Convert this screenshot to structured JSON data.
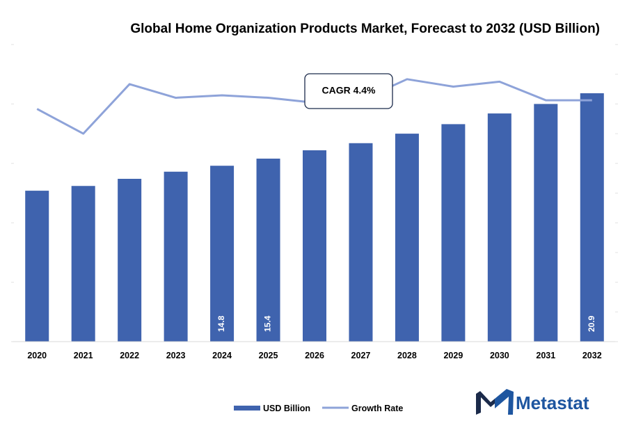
{
  "chart_data": {
    "type": "bar",
    "title": "Global Home Organization Products Market, Forecast to 2032 (USD Billion)",
    "categories": [
      "2020",
      "2021",
      "2022",
      "2023",
      "2024",
      "2025",
      "2026",
      "2027",
      "2028",
      "2029",
      "2030",
      "2031",
      "2032"
    ],
    "ylim": [
      0,
      25
    ],
    "series": [
      {
        "name": "USD Billion",
        "type": "bar",
        "color": "#3F63AE",
        "values": [
          12.7,
          13.1,
          13.7,
          14.3,
          14.8,
          15.4,
          16.1,
          16.7,
          17.5,
          18.3,
          19.2,
          20.0,
          20.9
        ],
        "data_labels": [
          "",
          "",
          "",
          "",
          "14.8",
          "15.4",
          "",
          "",
          "",
          "",
          "",
          "",
          "20.9"
        ]
      },
      {
        "name": "Growth Rate",
        "type": "line",
        "color": "#8EA3D9",
        "values": [
          4.4,
          3.4,
          5.4,
          4.85,
          4.95,
          4.85,
          4.65,
          4.75,
          5.6,
          5.3,
          5.5,
          4.75,
          4.75
        ],
        "ylim": [
          -5,
          7
        ]
      }
    ],
    "annotation": "CAGR 4.4%",
    "legend": "bottom",
    "grid": false
  },
  "brand": {
    "name": "Metastat",
    "color": "#1E56A0",
    "icon_color": "#1B2A4A",
    "icon": "metastat-m-logo-icon"
  }
}
